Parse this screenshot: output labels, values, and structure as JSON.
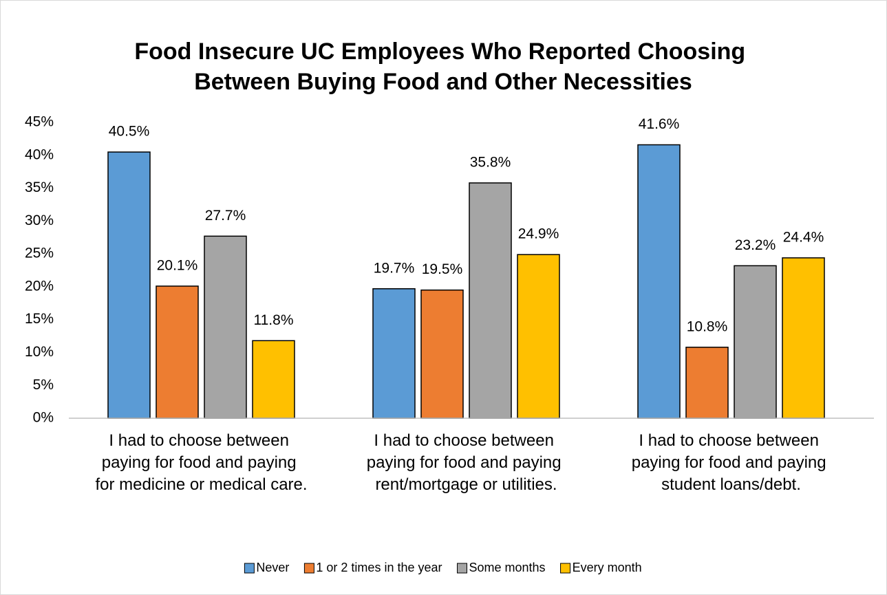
{
  "chart_data": {
    "type": "bar",
    "title": "Food Insecure UC Employees Who Reported Choosing Between Buying Food and Other Necessities",
    "categories": [
      "I had to choose between paying for food and paying for medicine or medical care.",
      "I had to choose between paying for food and paying rent/mortgage or utilities.",
      "I had to choose between paying for food and paying student loans/debt."
    ],
    "series": [
      {
        "name": "Never",
        "color": "#5b9bd5",
        "values": [
          40.5,
          19.7,
          41.6
        ],
        "value_labels": [
          "40.5%",
          "19.7%",
          "41.6%"
        ]
      },
      {
        "name": "1 or 2 times in the year",
        "color": "#ed7d31",
        "values": [
          20.1,
          19.5,
          10.8
        ],
        "value_labels": [
          "20.1%",
          "19.5%",
          "10.8%"
        ]
      },
      {
        "name": "Some months",
        "color": "#a5a5a5",
        "values": [
          27.7,
          35.8,
          23.2
        ],
        "value_labels": [
          "27.7%",
          "35.8%",
          "23.2%"
        ]
      },
      {
        "name": "Every month",
        "color": "#ffc000",
        "values": [
          11.8,
          24.9,
          24.4
        ],
        "value_labels": [
          "11.8%",
          "24.9%",
          "24.4%"
        ]
      }
    ],
    "ylim": [
      0,
      45
    ],
    "yticks": [
      {
        "value": 0,
        "label": "0%"
      },
      {
        "value": 5,
        "label": "5%"
      },
      {
        "value": 10,
        "label": "10%"
      },
      {
        "value": 15,
        "label": "15%"
      },
      {
        "value": 20,
        "label": "20%"
      },
      {
        "value": 25,
        "label": "25%"
      },
      {
        "value": 30,
        "label": "30%"
      },
      {
        "value": 35,
        "label": "35%"
      },
      {
        "value": 40,
        "label": "40%"
      },
      {
        "value": 45,
        "label": "45%"
      }
    ],
    "legend": "bottom",
    "grid": false
  }
}
